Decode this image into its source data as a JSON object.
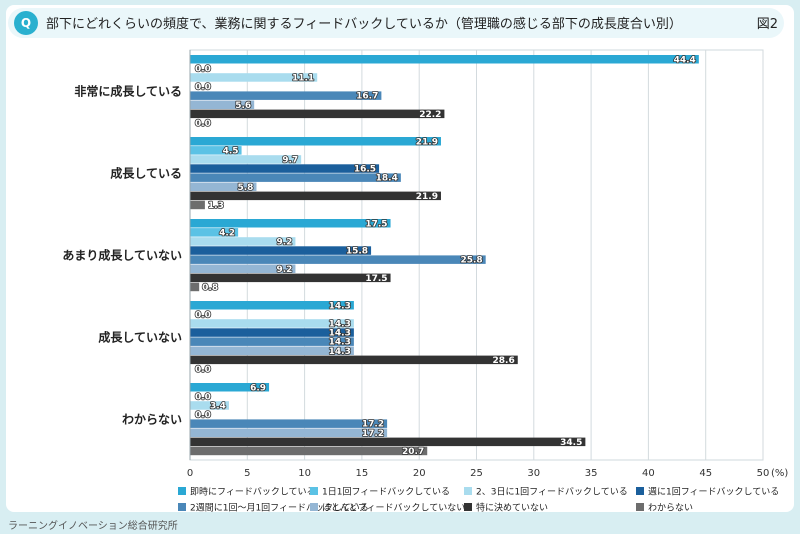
{
  "header": {
    "badge": "Q",
    "title": "部下にどれくらいの頻度で、業務に関するフィードバックしているか（管理職の感じる部下の成長度合い別）",
    "figure_label": "図2"
  },
  "footer": {
    "source": "ラーニングイノベーション総合研究所"
  },
  "chart_data": {
    "type": "bar",
    "orientation": "horizontal",
    "categories": [
      "非常に成長している",
      "成長している",
      "あまり成長していない",
      "成長していない",
      "わからない"
    ],
    "series": [
      {
        "name": "即時にフィードバックしている",
        "color": "#2aa8d4",
        "values": [
          44.4,
          21.9,
          17.5,
          14.3,
          6.9
        ]
      },
      {
        "name": "1日1回フィードバックしている",
        "color": "#5bc2e5",
        "values": [
          0.0,
          4.5,
          4.2,
          0.0,
          0.0
        ]
      },
      {
        "name": "2、3日に1回フィードバックしている",
        "color": "#a9dcee",
        "values": [
          11.1,
          9.7,
          9.2,
          14.3,
          3.4
        ]
      },
      {
        "name": "週に1回フィードバックしている",
        "color": "#1b5f9c",
        "values": [
          0.0,
          16.5,
          15.8,
          14.3,
          0.0
        ]
      },
      {
        "name": "2週間に1回～月1回フィードバックしている",
        "color": "#4a87b8",
        "values": [
          16.7,
          18.4,
          25.8,
          14.3,
          17.2
        ]
      },
      {
        "name": "ほとんどフィードバックしていない",
        "color": "#94b6d4",
        "values": [
          5.6,
          5.8,
          9.2,
          14.3,
          17.2
        ]
      },
      {
        "name": "特に決めていない",
        "color": "#333333",
        "values": [
          22.2,
          21.9,
          17.5,
          28.6,
          34.5
        ]
      },
      {
        "name": "わからない",
        "color": "#6d6d6d",
        "values": [
          0.0,
          1.3,
          0.8,
          0.0,
          20.7
        ]
      }
    ],
    "xlim": [
      0,
      50
    ],
    "xticks": [
      0,
      5,
      10,
      15,
      20,
      25,
      30,
      35,
      40,
      45,
      50
    ],
    "x_unit": "(%)",
    "grid": true,
    "legend_position": "bottom"
  }
}
